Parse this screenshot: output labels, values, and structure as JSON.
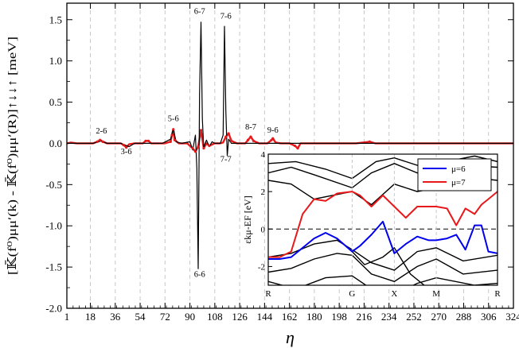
{
  "chart_data": [
    {
      "type": "line",
      "xlabel": "η",
      "ylabel": "[𝕂̄(f⁰)μμ′(k) - 𝕂̄(f⁰)μμ′(R)]↑↓↓↑ [meV]",
      "xlim": [
        1,
        324
      ],
      "ylim": [
        -2.0,
        1.7
      ],
      "xticks": [
        1,
        18,
        36,
        54,
        72,
        90,
        108,
        126,
        144,
        162,
        180,
        198,
        216,
        234,
        252,
        270,
        288,
        306,
        324
      ],
      "yticks": [
        "-2.0",
        "-1.5",
        "-1.0",
        "-0.5",
        "0.0",
        "0.5",
        "1.0",
        "1.5"
      ],
      "grid": "vertical dashed",
      "series": [
        {
          "name": "",
          "color": "#e8191b",
          "x": [
            1,
            4,
            8,
            14,
            20,
            23,
            25,
            27,
            30,
            36,
            40,
            42,
            44,
            46,
            50,
            56,
            58,
            60,
            62,
            66,
            72,
            76,
            77,
            78,
            79,
            82,
            88,
            92,
            94,
            96,
            98,
            100,
            102,
            104,
            108,
            112,
            114,
            116,
            118,
            120,
            124,
            130,
            132,
            134,
            136,
            140,
            146,
            149,
            150,
            152,
            156,
            162,
            166,
            168,
            170,
            176,
            190,
            200,
            210,
            220,
            224,
            230,
            250,
            270,
            280,
            286,
            300,
            324
          ],
          "y": [
            0.0,
            0.01,
            0.0,
            0.0,
            0.0,
            0.02,
            0.04,
            0.02,
            0.0,
            0.0,
            0.0,
            -0.02,
            -0.05,
            -0.01,
            0.0,
            0.0,
            0.03,
            0.03,
            0.0,
            0.0,
            0.0,
            0.02,
            0.1,
            0.17,
            0.04,
            0.0,
            0.0,
            -0.06,
            -0.1,
            -0.04,
            0.16,
            -0.06,
            0.0,
            -0.03,
            0.0,
            0.0,
            0.01,
            0.08,
            0.12,
            0.03,
            0.0,
            0.0,
            0.04,
            0.08,
            0.03,
            0.0,
            0.0,
            0.04,
            0.06,
            0.01,
            0.0,
            0.0,
            -0.03,
            -0.06,
            0.0,
            0.0,
            0.0,
            0.0,
            0.0,
            0.02,
            0.0,
            0.0,
            0.0,
            0.0,
            0.0,
            0.0,
            0.0,
            0.0
          ]
        },
        {
          "name": "",
          "color": "#000000",
          "x": [
            1,
            10,
            20,
            26,
            30,
            40,
            46,
            50,
            60,
            70,
            76,
            78,
            80,
            84,
            90,
            92,
            94,
            95,
            96,
            97,
            98,
            99,
            100,
            101,
            102,
            104,
            106,
            108,
            112,
            114,
            115,
            116,
            117,
            118,
            120,
            124,
            130,
            136,
            140,
            150,
            160,
            170,
            180,
            200,
            220,
            240,
            260,
            280,
            300,
            324
          ],
          "y": [
            0.0,
            0.0,
            0.0,
            0.03,
            0.0,
            0.0,
            -0.04,
            0.0,
            0.0,
            0.0,
            0.05,
            0.18,
            0.02,
            0.0,
            0.02,
            -0.08,
            0.1,
            -0.3,
            -1.52,
            0.6,
            1.47,
            0.3,
            -0.05,
            0.0,
            0.04,
            -0.04,
            0.02,
            0.0,
            0.0,
            0.1,
            1.42,
            0.4,
            -0.15,
            0.05,
            0.0,
            0.0,
            0.0,
            0.0,
            0.0,
            0.0,
            0.0,
            0.0,
            0.0,
            0.0,
            0.0,
            0.0,
            0.0,
            0.0,
            0.0,
            0.0
          ]
        }
      ],
      "annotations": [
        {
          "text": "2-6",
          "x": 26,
          "y": 0.12
        },
        {
          "text": "3-6",
          "x": 44,
          "y": -0.13
        },
        {
          "text": "5-6",
          "x": 78,
          "y": 0.27
        },
        {
          "text": "6-7",
          "x": 97,
          "y": 1.57
        },
        {
          "text": "7-6",
          "x": 116,
          "y": 1.51
        },
        {
          "text": "6-6",
          "x": 97,
          "y": -1.62
        },
        {
          "text": "7-7",
          "x": 116,
          "y": -0.22
        },
        {
          "text": "8-7",
          "x": 134,
          "y": 0.17
        },
        {
          "text": "9-6",
          "x": 150,
          "y": 0.13
        }
      ]
    },
    {
      "type": "line",
      "title": "",
      "xlabel": "",
      "ylabel": "εkμ-EF [eV]",
      "xlim": [
        0,
        1
      ],
      "ylim": [
        -3,
        4
      ],
      "yticks": [
        "-2",
        "0",
        "2",
        "4"
      ],
      "xtick_labels": [
        {
          "label": "R",
          "x": 0.0
        },
        {
          "label": "G",
          "x": 0.366
        },
        {
          "label": "X",
          "x": 0.55
        },
        {
          "label": "M",
          "x": 0.733
        },
        {
          "label": "R",
          "x": 1.0
        }
      ],
      "fermi_level": 0,
      "legend_position": "top-right",
      "series": [
        {
          "name": "μ=6",
          "color": "#0000ee",
          "x": [
            0.0,
            0.05,
            0.1,
            0.15,
            0.2,
            0.25,
            0.3,
            0.366,
            0.4,
            0.45,
            0.5,
            0.55,
            0.6,
            0.65,
            0.7,
            0.733,
            0.78,
            0.82,
            0.86,
            0.9,
            0.93,
            0.96,
            1.0
          ],
          "y": [
            -1.6,
            -1.6,
            -1.5,
            -1.0,
            -0.5,
            -0.2,
            -0.5,
            -1.2,
            -0.9,
            -0.3,
            0.4,
            -1.3,
            -0.8,
            -0.4,
            -0.6,
            -0.6,
            -0.5,
            -0.3,
            -1.1,
            0.2,
            0.2,
            -1.2,
            -1.3
          ]
        },
        {
          "name": "μ=7",
          "color": "#e8191b",
          "x": [
            0.0,
            0.05,
            0.1,
            0.15,
            0.2,
            0.25,
            0.3,
            0.366,
            0.4,
            0.45,
            0.5,
            0.55,
            0.6,
            0.65,
            0.7,
            0.733,
            0.78,
            0.82,
            0.86,
            0.9,
            0.93,
            0.96,
            1.0
          ],
          "y": [
            -1.5,
            -1.5,
            -1.2,
            0.8,
            1.6,
            1.5,
            1.9,
            2.0,
            1.8,
            1.2,
            1.8,
            1.2,
            0.6,
            1.2,
            1.2,
            1.2,
            1.1,
            0.2,
            1.1,
            0.8,
            1.3,
            1.6,
            2.0
          ]
        }
      ]
    }
  ]
}
